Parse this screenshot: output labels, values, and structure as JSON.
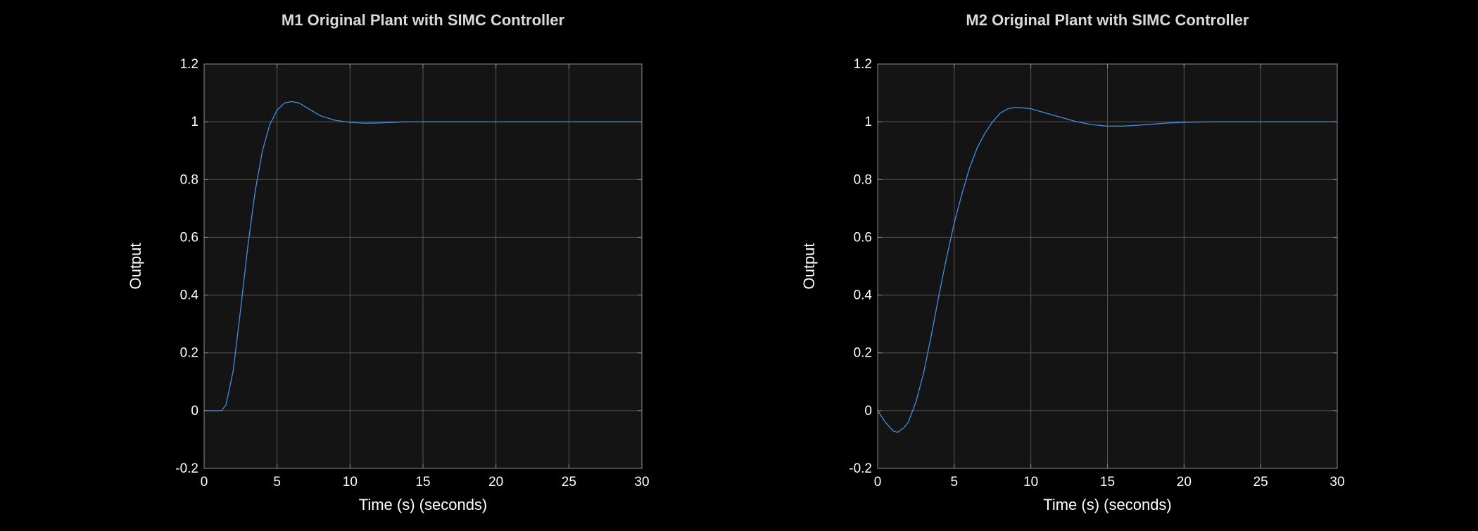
{
  "colors": {
    "background": "#000000",
    "axes_background": "#141414",
    "axes_border": "#8c8c8c",
    "grid": "#555555",
    "text": "#ffffff",
    "title": "#d9d9d9",
    "line": "#3d8fe0"
  },
  "chart_data": [
    {
      "type": "line",
      "title": "M1 Original Plant with SIMC Controller",
      "xlabel": "Time (s) (seconds)",
      "ylabel": "Output",
      "xlim": [
        0,
        30
      ],
      "ylim": [
        -0.2,
        1.2
      ],
      "xticks": [
        0,
        5,
        10,
        15,
        20,
        25,
        30
      ],
      "yticks": [
        -0.2,
        0,
        0.2,
        0.4,
        0.6,
        0.8,
        1,
        1.2
      ],
      "xtick_labels": [
        "0",
        "5",
        "10",
        "15",
        "20",
        "25",
        "30"
      ],
      "ytick_labels": [
        "-0.2",
        "0",
        "0.2",
        "0.4",
        "0.6",
        "0.8",
        "1",
        "1.2"
      ],
      "grid": true,
      "series": [
        {
          "x": [
            0,
            1.2,
            1.5,
            2.0,
            2.5,
            3.0,
            3.5,
            4.0,
            4.5,
            5.0,
            5.5,
            6.0,
            6.5,
            7.0,
            7.5,
            8.0,
            9.0,
            10.0,
            11.0,
            12.0,
            13.0,
            14.0,
            16.0,
            20.0,
            25.0,
            30.0
          ],
          "y": [
            0,
            0,
            0.02,
            0.14,
            0.35,
            0.57,
            0.76,
            0.9,
            0.99,
            1.04,
            1.065,
            1.07,
            1.065,
            1.05,
            1.035,
            1.02,
            1.005,
            0.998,
            0.995,
            0.996,
            0.998,
            1.0,
            1.0,
            1.0,
            1.0,
            1.0
          ]
        }
      ]
    },
    {
      "type": "line",
      "title": "M2 Original Plant with SIMC Controller",
      "xlabel": "Time (s) (seconds)",
      "ylabel": "Output",
      "xlim": [
        0,
        30
      ],
      "ylim": [
        -0.2,
        1.2
      ],
      "xticks": [
        0,
        5,
        10,
        15,
        20,
        25,
        30
      ],
      "yticks": [
        -0.2,
        0,
        0.2,
        0.4,
        0.6,
        0.8,
        1,
        1.2
      ],
      "xtick_labels": [
        "0",
        "5",
        "10",
        "15",
        "20",
        "25",
        "30"
      ],
      "ytick_labels": [
        "-0.2",
        "0",
        "0.2",
        "0.4",
        "0.6",
        "0.8",
        "1",
        "1.2"
      ],
      "grid": true,
      "series": [
        {
          "x": [
            0,
            0.5,
            1.0,
            1.3,
            1.7,
            2.0,
            2.5,
            3.0,
            3.5,
            4.0,
            4.5,
            5.0,
            5.5,
            6.0,
            6.5,
            7.0,
            7.5,
            8.0,
            8.5,
            9.0,
            9.5,
            10.0,
            11.0,
            12.0,
            13.0,
            14.0,
            15.0,
            16.0,
            17.0,
            18.0,
            19.0,
            20.0,
            22.0,
            25.0,
            30.0
          ],
          "y": [
            0,
            -0.04,
            -0.07,
            -0.075,
            -0.06,
            -0.04,
            0.03,
            0.13,
            0.26,
            0.4,
            0.53,
            0.65,
            0.75,
            0.84,
            0.91,
            0.96,
            1.0,
            1.03,
            1.045,
            1.05,
            1.048,
            1.045,
            1.03,
            1.015,
            1.0,
            0.99,
            0.985,
            0.985,
            0.988,
            0.992,
            0.996,
            0.998,
            1.0,
            1.0,
            1.0
          ]
        }
      ]
    }
  ]
}
